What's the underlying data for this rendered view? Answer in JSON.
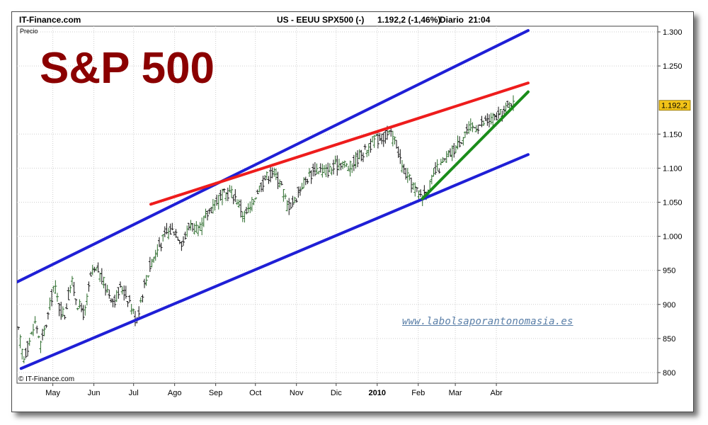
{
  "header": {
    "brand": "IT-Finance.com",
    "instrument": "US - EEUU SPX500 (-)",
    "price_change": "1.192,2 (-1,46%)",
    "period_time": "Diario  21:04"
  },
  "watermark": "www.labolsaporantonomasia.es",
  "chart_data": {
    "type": "ohlc-bar",
    "title": "S&P 500",
    "ylabel": "Precio",
    "copyright": "© IT-Finance.com",
    "ylim": [
      775,
      1320
    ],
    "yticks": [
      800,
      850,
      900,
      950,
      1000,
      1050,
      1100,
      1150,
      1250,
      1300
    ],
    "ytick_labels": [
      "800",
      "850",
      "900",
      "950",
      "1.000",
      "1.050",
      "1.100",
      "1.150",
      "1.250",
      "1.300"
    ],
    "x_range_days": [
      0,
      348
    ],
    "x_months": [
      {
        "label": "May",
        "day": 26,
        "bold": false
      },
      {
        "label": "Jun",
        "day": 57,
        "bold": false
      },
      {
        "label": "Jul",
        "day": 87,
        "bold": false
      },
      {
        "label": "Ago",
        "day": 118,
        "bold": false
      },
      {
        "label": "Sep",
        "day": 149,
        "bold": false
      },
      {
        "label": "Oct",
        "day": 179,
        "bold": false
      },
      {
        "label": "Nov",
        "day": 210,
        "bold": false
      },
      {
        "label": "Dic",
        "day": 240,
        "bold": false
      },
      {
        "label": "2010",
        "day": 271,
        "bold": true
      },
      {
        "label": "Feb",
        "day": 302,
        "bold": false
      },
      {
        "label": "Mar",
        "day": 330,
        "bold": false
      },
      {
        "label": "Abr",
        "day": 361,
        "bold": false
      }
    ],
    "last_price_label": "1.192,2",
    "last_price": 1192.2,
    "price_series": [
      [
        0,
        860
      ],
      [
        4,
        820
      ],
      [
        8,
        845
      ],
      [
        13,
        875
      ],
      [
        17,
        840
      ],
      [
        22,
        880
      ],
      [
        27,
        930
      ],
      [
        31,
        895
      ],
      [
        35,
        885
      ],
      [
        40,
        935
      ],
      [
        45,
        900
      ],
      [
        50,
        885
      ],
      [
        55,
        945
      ],
      [
        60,
        950
      ],
      [
        66,
        925
      ],
      [
        72,
        905
      ],
      [
        78,
        925
      ],
      [
        84,
        905
      ],
      [
        89,
        875
      ],
      [
        94,
        920
      ],
      [
        100,
        960
      ],
      [
        106,
        985
      ],
      [
        112,
        1005
      ],
      [
        118,
        1010
      ],
      [
        124,
        990
      ],
      [
        130,
        1020
      ],
      [
        136,
        1005
      ],
      [
        142,
        1030
      ],
      [
        148,
        1050
      ],
      [
        154,
        1060
      ],
      [
        160,
        1065
      ],
      [
        165,
        1055
      ],
      [
        170,
        1030
      ],
      [
        175,
        1040
      ],
      [
        180,
        1065
      ],
      [
        186,
        1085
      ],
      [
        192,
        1095
      ],
      [
        198,
        1080
      ],
      [
        203,
        1045
      ],
      [
        208,
        1050
      ],
      [
        214,
        1075
      ],
      [
        220,
        1090
      ],
      [
        226,
        1100
      ],
      [
        232,
        1095
      ],
      [
        238,
        1100
      ],
      [
        244,
        1110
      ],
      [
        250,
        1100
      ],
      [
        256,
        1115
      ],
      [
        262,
        1125
      ],
      [
        268,
        1140
      ],
      [
        274,
        1145
      ],
      [
        280,
        1150
      ],
      [
        285,
        1140
      ],
      [
        290,
        1100
      ],
      [
        296,
        1080
      ],
      [
        301,
        1065
      ],
      [
        305,
        1060
      ],
      [
        310,
        1070
      ],
      [
        315,
        1095
      ],
      [
        320,
        1105
      ],
      [
        326,
        1120
      ],
      [
        332,
        1135
      ],
      [
        338,
        1155
      ],
      [
        344,
        1160
      ],
      [
        350,
        1165
      ],
      [
        356,
        1170
      ],
      [
        362,
        1175
      ],
      [
        368,
        1185
      ],
      [
        372,
        1200
      ],
      [
        374,
        1192.2
      ]
    ],
    "trendlines": [
      {
        "name": "upper-channel",
        "color": "#1f1fd6",
        "from": [
          -1,
          933
        ],
        "to": [
          385,
          1302
        ]
      },
      {
        "name": "lower-channel",
        "color": "#1f1fd6",
        "from": [
          2,
          806
        ],
        "to": [
          385,
          1120
        ]
      },
      {
        "name": "resistance",
        "color": "#ee1c1c",
        "from": [
          100,
          1047
        ],
        "to": [
          385,
          1225
        ]
      },
      {
        "name": "support",
        "color": "#1a8c1a",
        "from": [
          305,
          1055
        ],
        "to": [
          385,
          1212
        ]
      }
    ]
  }
}
